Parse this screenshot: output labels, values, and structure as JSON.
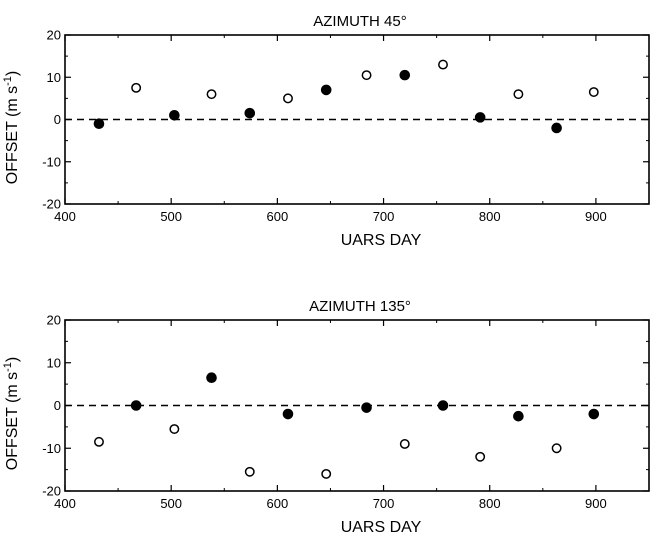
{
  "chart_data": [
    {
      "type": "scatter",
      "title": "AZIMUTH 45°",
      "xlabel": "UARS DAY",
      "ylabel": "OFFSET (m s",
      "ylabel_sup": "-1",
      "ylabel_close": ")",
      "xlim": [
        400,
        950
      ],
      "ylim": [
        -20,
        20
      ],
      "xticks": [
        "400",
        "500",
        "600",
        "700",
        "800",
        "900"
      ],
      "yticks": [
        "20",
        "10",
        "0",
        "-10",
        "-20"
      ],
      "zero_line": "dashed",
      "series": [
        {
          "marker": "filled-circle",
          "x": [
            432,
            503,
            574,
            646,
            720,
            791,
            863
          ],
          "y": [
            -1,
            1,
            1.5,
            7,
            10.5,
            0.5,
            -2
          ]
        },
        {
          "marker": "open-circle",
          "x": [
            467,
            538,
            610,
            684,
            756,
            827,
            898
          ],
          "y": [
            7.5,
            6,
            5,
            10.5,
            13,
            6,
            6.5
          ]
        }
      ]
    },
    {
      "type": "scatter",
      "title": "AZIMUTH 135°",
      "xlabel": "UARS DAY",
      "ylabel": "OFFSET (m s",
      "ylabel_sup": "-1",
      "ylabel_close": ")",
      "xlim": [
        400,
        950
      ],
      "ylim": [
        -20,
        20
      ],
      "xticks": [
        "400",
        "500",
        "600",
        "700",
        "800",
        "900"
      ],
      "yticks": [
        "20",
        "10",
        "0",
        "-10",
        "-20"
      ],
      "zero_line": "dashed",
      "series": [
        {
          "marker": "filled-circle",
          "x": [
            467,
            538,
            610,
            684,
            756,
            827,
            898
          ],
          "y": [
            0,
            6.5,
            -2,
            -0.5,
            0,
            -2.5,
            -2
          ]
        },
        {
          "marker": "open-circle",
          "x": [
            432,
            503,
            574,
            646,
            720,
            791,
            863
          ],
          "y": [
            -8.5,
            -5.5,
            -15.5,
            -16,
            -9,
            -12,
            -10
          ]
        }
      ]
    }
  ]
}
